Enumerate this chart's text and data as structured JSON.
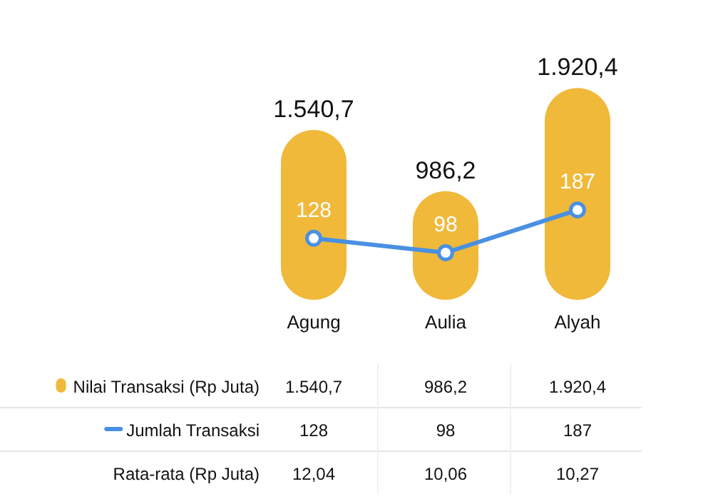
{
  "chart_data": {
    "type": "bar",
    "categories": [
      "Agung",
      "Aulia",
      "Alyah"
    ],
    "tick_labels": "x",
    "marker": "circle",
    "legend": "bottom left",
    "series": [
      {
        "name": "Nilai Transaksi (Rp Juta)",
        "color": "#f0b93a",
        "values": [
          1540.7,
          986.2,
          1920.4
        ],
        "value_labels": [
          "1.540,7",
          "986,2",
          "1.920,4"
        ]
      },
      {
        "name": "Jumlah Transaksi",
        "type": "line",
        "axis": "y2",
        "color": "#4a90e2",
        "values": [
          128,
          98,
          187
        ],
        "value_labels": [
          "128",
          "98",
          "187"
        ]
      }
    ],
    "annotations": [
      "Rata-rata (Rp Juta)",
      "12,04",
      "10,06",
      "10,27"
    ]
  }
}
